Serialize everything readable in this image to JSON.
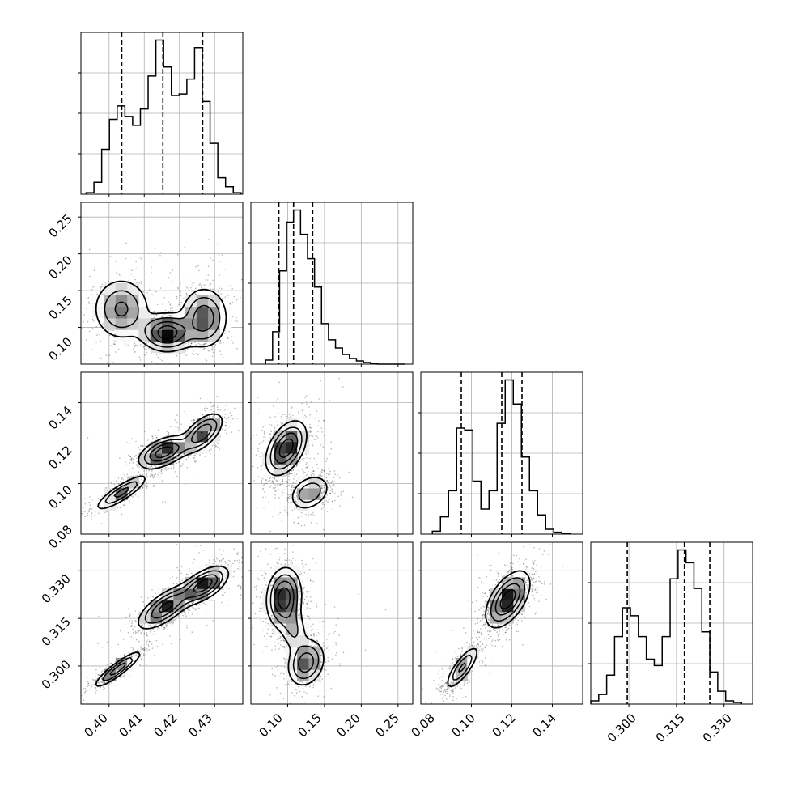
{
  "figure": {
    "type": "corner_plot",
    "background": "#ffffff",
    "grid": true,
    "grid_color": "#b0b0b0",
    "line_color": "#000000",
    "quantile_line_style": "dashed"
  },
  "chart_data": [
    {
      "type": "histogram",
      "panel": "1-1",
      "xlim": [
        0.392,
        0.438
      ],
      "bins": {
        "start": 0.3935,
        "width": 0.0022,
        "counts": [
          1,
          8,
          30,
          50,
          59,
          52,
          46,
          57,
          79,
          103,
          85,
          66,
          67,
          77,
          98,
          62,
          34,
          11,
          5,
          1
        ]
      },
      "quantiles": [
        0.4036,
        0.4153,
        0.4266
      ]
    },
    {
      "type": "histogram",
      "panel": "2-2",
      "xlim": [
        0.05,
        0.27
      ],
      "bins": {
        "start": 0.07,
        "width": 0.0095,
        "counts": [
          5,
          40,
          115,
          175,
          190,
          160,
          130,
          95,
          50,
          30,
          20,
          12,
          7,
          4,
          2,
          1,
          0,
          0,
          0,
          0
        ]
      },
      "quantiles": [
        0.088,
        0.108,
        0.134
      ]
    },
    {
      "type": "histogram",
      "panel": "3-3",
      "xlim": [
        0.075,
        0.155
      ],
      "bins": {
        "start": 0.0807,
        "width": 0.004,
        "counts": [
          3,
          18,
          45,
          110,
          108,
          55,
          26,
          45,
          115,
          160,
          135,
          80,
          45,
          20,
          5,
          2,
          1
        ]
      },
      "quantiles": [
        0.095,
        0.115,
        0.125
      ]
    },
    {
      "type": "histogram",
      "panel": "4-4",
      "xlim": [
        0.288,
        0.339
      ],
      "bins": {
        "start": 0.288,
        "width": 0.0025,
        "counts": [
          2,
          6,
          18,
          42,
          60,
          55,
          42,
          28,
          24,
          42,
          78,
          96,
          88,
          72,
          45,
          20,
          8,
          2,
          1
        ]
      },
      "quantiles": [
        0.2995,
        0.3175,
        0.3255
      ]
    },
    {
      "type": "contour_density",
      "panel": "2-1",
      "xlim": [
        0.392,
        0.438
      ],
      "ylim": [
        0.05,
        0.27
      ],
      "components": [
        {
          "x": 0.4035,
          "y": 0.125,
          "sx": 0.0042,
          "sy": 0.022,
          "rho": 0.0,
          "w": 0.6
        },
        {
          "x": 0.4165,
          "y": 0.093,
          "sx": 0.0038,
          "sy": 0.013,
          "rho": 0.0,
          "w": 1.0
        },
        {
          "x": 0.427,
          "y": 0.113,
          "sx": 0.0034,
          "sy": 0.021,
          "rho": 0.0,
          "w": 0.75
        }
      ]
    },
    {
      "type": "contour_density",
      "panel": "3-1",
      "xlim": [
        0.392,
        0.438
      ],
      "ylim": [
        0.075,
        0.155
      ],
      "components": [
        {
          "x": 0.4035,
          "y": 0.0955,
          "sx": 0.0038,
          "sy": 0.0045,
          "rho": 0.85,
          "w": 0.65
        },
        {
          "x": 0.4155,
          "y": 0.1155,
          "sx": 0.0036,
          "sy": 0.004,
          "rho": 0.5,
          "w": 1.0
        },
        {
          "x": 0.4265,
          "y": 0.125,
          "sx": 0.003,
          "sy": 0.005,
          "rho": 0.6,
          "w": 0.8
        }
      ]
    },
    {
      "type": "contour_density",
      "panel": "3-2",
      "xlim": [
        0.05,
        0.27
      ],
      "ylim": [
        0.075,
        0.155
      ],
      "components": [
        {
          "x": 0.098,
          "y": 0.1175,
          "sx": 0.014,
          "sy": 0.0068,
          "rho": 0.45,
          "w": 1.0
        },
        {
          "x": 0.13,
          "y": 0.0955,
          "sx": 0.014,
          "sy": 0.0045,
          "rho": 0.3,
          "w": 0.55
        }
      ]
    },
    {
      "type": "contour_density",
      "panel": "4-1",
      "xlim": [
        0.392,
        0.438
      ],
      "ylim": [
        0.288,
        0.339
      ],
      "components": [
        {
          "x": 0.4025,
          "y": 0.299,
          "sx": 0.0035,
          "sy": 0.003,
          "rho": 0.9,
          "w": 0.7
        },
        {
          "x": 0.416,
          "y": 0.3185,
          "sx": 0.004,
          "sy": 0.0035,
          "rho": 0.7,
          "w": 0.9
        },
        {
          "x": 0.427,
          "y": 0.3255,
          "sx": 0.0035,
          "sy": 0.003,
          "rho": 0.6,
          "w": 1.0
        }
      ]
    },
    {
      "type": "contour_density",
      "panel": "4-2",
      "xlim": [
        0.05,
        0.27
      ],
      "ylim": [
        0.288,
        0.339
      ],
      "components": [
        {
          "x": 0.095,
          "y": 0.3215,
          "sx": 0.012,
          "sy": 0.0048,
          "rho": 0.1,
          "w": 1.0
        },
        {
          "x": 0.125,
          "y": 0.301,
          "sx": 0.013,
          "sy": 0.0038,
          "rho": 0.2,
          "w": 0.75
        },
        {
          "x": 0.108,
          "y": 0.3115,
          "sx": 0.01,
          "sy": 0.004,
          "rho": -0.2,
          "w": 0.35
        }
      ]
    },
    {
      "type": "contour_density",
      "panel": "4-3",
      "xlim": [
        0.075,
        0.155
      ],
      "ylim": [
        0.288,
        0.339
      ],
      "components": [
        {
          "x": 0.0955,
          "y": 0.2995,
          "sx": 0.0042,
          "sy": 0.0035,
          "rho": 0.8,
          "w": 0.6
        },
        {
          "x": 0.118,
          "y": 0.321,
          "sx": 0.0055,
          "sy": 0.0045,
          "rho": 0.55,
          "w": 1.0
        }
      ]
    }
  ],
  "ticks": {
    "x1": [
      "0.40",
      "0.41",
      "0.42",
      "0.43"
    ],
    "x2": [
      "0.10",
      "0.15",
      "0.20",
      "0.25"
    ],
    "x3": [
      "0.08",
      "0.10",
      "0.12",
      "0.14"
    ],
    "x4": [
      "0.300",
      "0.315",
      "0.330"
    ],
    "y2": [
      "0.25",
      "0.20",
      "0.15",
      "0.10"
    ],
    "y3": [
      "0.14",
      "0.12",
      "0.10",
      "0.08"
    ],
    "y4": [
      "0.330",
      "0.315",
      "0.300"
    ]
  }
}
